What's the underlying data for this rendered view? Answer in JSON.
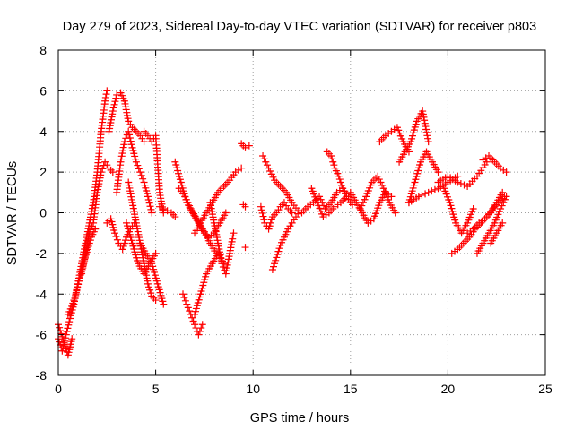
{
  "chart_data": {
    "type": "scatter",
    "title": "Day 279 of 2023, Sidereal Day-to-day VTEC variation (SDTVAR) for receiver p803",
    "xlabel": "GPS time / hours",
    "ylabel": "SDTVAR / TECUs",
    "xlim": [
      0,
      25
    ],
    "ylim": [
      -8,
      8
    ],
    "x_ticks": [
      0,
      5,
      10,
      15,
      20,
      25
    ],
    "y_ticks": [
      -8,
      -6,
      -4,
      -2,
      0,
      2,
      4,
      6,
      8
    ],
    "grid": true,
    "marker": "+",
    "series": [
      {
        "name": "SDTVAR",
        "color": "#ff0000",
        "traces": [
          {
            "x": [
              0.0,
              0.2,
              0.4,
              0.6,
              0.8,
              1.0,
              1.2,
              1.4,
              1.6,
              1.8,
              2.0,
              2.2,
              2.4,
              2.5
            ],
            "y": [
              -6.2,
              -6.8,
              -6.0,
              -5.2,
              -4.5,
              -3.5,
              -2.5,
              -1.5,
              -0.5,
              0.5,
              2.0,
              4.0,
              5.5,
              6.0
            ]
          },
          {
            "x": [
              0.0,
              0.1,
              0.2,
              0.3,
              0.4,
              0.5,
              0.6,
              0.7
            ],
            "y": [
              -5.5,
              -5.8,
              -6.1,
              -6.4,
              -6.7,
              -7.0,
              -6.6,
              -6.2
            ]
          },
          {
            "x": [
              0.5,
              0.7,
              0.9,
              1.1,
              1.3,
              1.5,
              1.7,
              1.9
            ],
            "y": [
              -5.0,
              -4.6,
              -4.0,
              -3.2,
              -2.5,
              -1.8,
              -1.2,
              -0.8
            ]
          },
          {
            "x": [
              1.2,
              1.4,
              1.6,
              1.8,
              2.0,
              2.2,
              2.4,
              2.6,
              2.8
            ],
            "y": [
              -3.0,
              -2.0,
              -1.0,
              -0.5,
              1.0,
              2.0,
              2.5,
              2.2,
              2.0
            ]
          },
          {
            "x": [
              2.6,
              2.8,
              3.0,
              3.2,
              3.4,
              3.6,
              3.8,
              4.0,
              4.2,
              4.4
            ],
            "y": [
              4.0,
              5.0,
              5.8,
              5.9,
              5.5,
              4.5,
              4.2,
              4.0,
              3.8,
              3.5
            ]
          },
          {
            "x": [
              3.0,
              3.2,
              3.4,
              3.6,
              3.8,
              4.0,
              4.2,
              4.4,
              4.6,
              4.8
            ],
            "y": [
              1.0,
              2.5,
              3.5,
              4.0,
              3.2,
              2.5,
              2.0,
              1.5,
              0.8,
              0.0
            ]
          },
          {
            "x": [
              2.5,
              2.7,
              2.9,
              3.1,
              3.3,
              3.5,
              3.7,
              3.9
            ],
            "y": [
              -0.5,
              -0.3,
              -1.0,
              -1.5,
              -1.8,
              -1.2,
              -0.8,
              -0.5
            ]
          },
          {
            "x": [
              3.6,
              3.8,
              4.0,
              4.2,
              4.4,
              4.6,
              4.8,
              5.0
            ],
            "y": [
              1.5,
              0.5,
              -0.5,
              -1.5,
              -2.5,
              -3.5,
              -4.1,
              -4.3
            ]
          },
          {
            "x": [
              4.2,
              4.5,
              4.8,
              5.1,
              5.4
            ],
            "y": [
              -1.5,
              -2.0,
              -2.5,
              -3.5,
              -4.5
            ]
          },
          {
            "x": [
              3.5,
              3.8,
              4.1,
              4.4,
              4.7,
              5.0
            ],
            "y": [
              -0.5,
              -1.5,
              -2.5,
              -3.0,
              -2.5,
              -2.0
            ]
          },
          {
            "x": [
              4.4,
              4.6,
              4.8,
              5.0,
              5.2,
              5.4
            ],
            "y": [
              4.0,
              3.8,
              3.5,
              3.8,
              1.0,
              0.0
            ]
          },
          {
            "x": [
              5.2,
              5.4,
              5.6,
              5.8,
              6.0
            ],
            "y": [
              0.3,
              0.2,
              0.1,
              0.0,
              -0.2
            ]
          },
          {
            "x": [
              6.0,
              6.3,
              6.6,
              6.9,
              7.2,
              7.5,
              7.8,
              8.1
            ],
            "y": [
              2.5,
              1.5,
              0.5,
              0.0,
              -0.5,
              -1.0,
              -1.5,
              -2.0
            ]
          },
          {
            "x": [
              6.2,
              6.5,
              6.8,
              7.1,
              7.4,
              7.7,
              8.0,
              8.3,
              8.6
            ],
            "y": [
              1.2,
              0.8,
              0.2,
              -0.3,
              -0.8,
              -1.2,
              -1.0,
              -0.5,
              0.0
            ]
          },
          {
            "x": [
              7.0,
              7.3,
              7.6,
              7.9,
              8.2,
              8.5,
              8.8,
              9.1,
              9.4
            ],
            "y": [
              -1.0,
              -0.5,
              0.0,
              0.5,
              1.0,
              1.3,
              1.6,
              2.0,
              2.2
            ]
          },
          {
            "x": [
              6.4,
              6.6,
              6.8,
              7.0,
              7.2,
              7.4
            ],
            "y": [
              -4.0,
              -4.5,
              -5.0,
              -5.5,
              -6.0,
              -5.5
            ]
          },
          {
            "x": [
              7.0,
              7.3,
              7.6,
              7.9,
              8.2,
              8.5
            ],
            "y": [
              -5.0,
              -4.0,
              -3.0,
              -2.5,
              -2.0,
              -2.5
            ]
          },
          {
            "x": [
              7.8,
              8.0,
              8.2,
              8.4,
              8.6,
              8.8,
              9.0
            ],
            "y": [
              0.5,
              -0.5,
              -1.5,
              -2.5,
              -3.0,
              -2.0,
              -1.0
            ]
          },
          {
            "x": [
              9.4,
              9.6,
              9.8
            ],
            "y": [
              3.4,
              3.2,
              3.3
            ]
          },
          {
            "x": [
              9.5,
              9.6
            ],
            "y": [
              0.4,
              0.3
            ]
          },
          {
            "x": [
              9.6
            ],
            "y": [
              -1.7
            ]
          },
          {
            "x": [
              10.5,
              10.8,
              11.1,
              11.4,
              11.7,
              12.0,
              12.3
            ],
            "y": [
              2.8,
              2.2,
              1.6,
              1.3,
              1.0,
              0.5,
              0.1
            ]
          },
          {
            "x": [
              10.4,
              10.6,
              10.8,
              11.0,
              11.2,
              11.4,
              11.6,
              11.8,
              12.0
            ],
            "y": [
              0.3,
              -0.5,
              -0.8,
              -0.2,
              0.0,
              0.3,
              0.5,
              0.2,
              0.0
            ]
          },
          {
            "x": [
              11.0,
              11.2,
              11.4,
              11.6,
              11.8,
              12.0,
              12.2,
              12.4
            ],
            "y": [
              -2.8,
              -2.2,
              -1.6,
              -1.2,
              -0.8,
              -0.5,
              -0.2,
              0.1
            ]
          },
          {
            "x": [
              12.5,
              12.8,
              13.1,
              13.4,
              13.7,
              14.0,
              14.3,
              14.6,
              14.9
            ],
            "y": [
              0.0,
              0.3,
              0.5,
              0.8,
              0.2,
              0.5,
              1.0,
              1.2,
              0.8
            ]
          },
          {
            "x": [
              13.0,
              13.3,
              13.6,
              13.9,
              14.2,
              14.5,
              14.8,
              15.1
            ],
            "y": [
              1.2,
              0.5,
              -0.2,
              0.0,
              0.3,
              0.5,
              0.8,
              0.4
            ]
          },
          {
            "x": [
              13.8,
              14.0,
              14.2,
              14.4,
              14.6,
              14.8,
              15.0
            ],
            "y": [
              3.0,
              2.8,
              2.2,
              1.8,
              1.2,
              0.8,
              0.5
            ]
          },
          {
            "x": [
              15.0,
              15.3,
              15.6,
              15.9,
              16.2,
              16.5,
              16.8,
              17.1
            ],
            "y": [
              1.0,
              0.5,
              0.0,
              -0.5,
              -0.3,
              0.5,
              1.0,
              0.8
            ]
          },
          {
            "x": [
              15.5,
              15.8,
              16.1,
              16.4,
              16.7,
              17.0,
              17.3
            ],
            "y": [
              0.2,
              0.8,
              1.5,
              1.8,
              1.2,
              0.5,
              0.0
            ]
          },
          {
            "x": [
              16.5,
              16.8,
              17.1,
              17.4,
              17.7,
              18.0
            ],
            "y": [
              3.5,
              3.8,
              4.0,
              4.2,
              3.5,
              3.0
            ]
          },
          {
            "x": [
              17.5,
              17.8,
              18.1,
              18.4,
              18.7,
              19.0
            ],
            "y": [
              2.5,
              3.0,
              3.5,
              4.5,
              5.0,
              3.5
            ]
          },
          {
            "x": [
              18.0,
              18.3,
              18.6,
              18.9,
              19.2,
              19.5
            ],
            "y": [
              0.5,
              1.5,
              2.5,
              3.0,
              2.5,
              2.0
            ]
          },
          {
            "x": [
              18.0,
              18.5,
              19.0,
              19.5,
              20.0,
              20.5
            ],
            "y": [
              0.5,
              0.8,
              1.0,
              1.2,
              1.5,
              1.8
            ]
          },
          {
            "x": [
              19.5,
              20.0,
              20.5,
              21.0,
              21.5,
              22.0
            ],
            "y": [
              1.5,
              1.8,
              1.5,
              1.3,
              1.8,
              2.5
            ]
          },
          {
            "x": [
              21.8,
              22.1,
              22.4,
              22.7,
              23.0
            ],
            "y": [
              2.6,
              2.8,
              2.5,
              2.2,
              2.0
            ]
          },
          {
            "x": [
              19.8,
              20.1,
              20.4,
              20.7,
              21.0,
              21.3
            ],
            "y": [
              1.2,
              0.5,
              -0.5,
              -1.0,
              -0.5,
              0.2
            ]
          },
          {
            "x": [
              20.2,
              20.5,
              20.8,
              21.1,
              21.4,
              21.7,
              22.0,
              22.3,
              22.6,
              22.9
            ],
            "y": [
              -2.0,
              -1.8,
              -1.5,
              -1.2,
              -0.8,
              -0.5,
              -0.2,
              0.2,
              0.5,
              0.8
            ]
          },
          {
            "x": [
              21.0,
              21.3,
              21.6,
              21.9,
              22.2,
              22.5,
              22.8
            ],
            "y": [
              -1.0,
              -0.8,
              -0.5,
              -0.3,
              0.0,
              0.5,
              1.0
            ]
          },
          {
            "x": [
              21.5,
              21.8,
              22.1,
              22.4,
              22.7,
              23.0
            ],
            "y": [
              -2.0,
              -1.5,
              -1.0,
              -0.5,
              0.2,
              0.8
            ]
          },
          {
            "x": [
              22.2,
              22.5,
              22.8
            ],
            "y": [
              -1.5,
              -1.0,
              -0.5
            ]
          }
        ]
      }
    ]
  }
}
